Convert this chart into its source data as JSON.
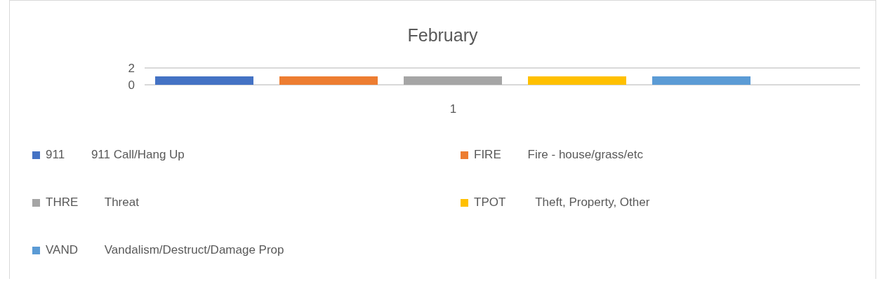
{
  "chart_data": {
    "type": "bar",
    "title": "February",
    "categories": [
      "1"
    ],
    "series": [
      {
        "name": "911        911 Call/Hang Up",
        "color": "#4472c4",
        "values": [
          1
        ]
      },
      {
        "name": "FIRE        Fire - house/grass/etc",
        "color": "#ed7d31",
        "values": [
          1
        ]
      },
      {
        "name": "THRE        Threat",
        "color": "#a5a5a5",
        "values": [
          1
        ]
      },
      {
        "name": "TPOT         Theft, Property, Other",
        "color": "#ffc000",
        "values": [
          1
        ]
      },
      {
        "name": "VAND        Vandalism/Destruct/Damage Prop",
        "color": "#5b9bd5",
        "values": [
          1
        ]
      }
    ],
    "ylim": [
      0,
      2
    ],
    "yticks": [
      0,
      2
    ],
    "grid": "y",
    "legend": "bottom"
  }
}
